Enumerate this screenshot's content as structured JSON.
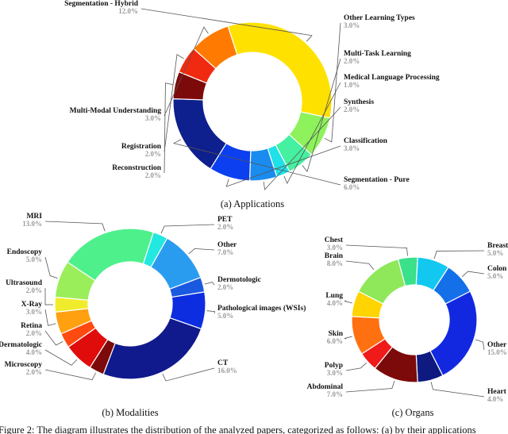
{
  "caption_footer": "Figure 2: The diagram illustrates the distribution of the analyzed papers, categorized as follows: (a) by their applications",
  "chart_data": [
    {
      "type": "pie",
      "title": "(a) Applications",
      "donut": true,
      "categories": [
        "Segmentation - Hybrid",
        "Other Learning Types",
        "Multi-Task Learning",
        "Medical Language Processing",
        "Synthesis",
        "Classification",
        "Segmentation - Pure",
        "Reconstruction",
        "Registration",
        "Multi-Modal Understanding"
      ],
      "values": [
        12.0,
        3.0,
        2.0,
        1.0,
        2.0,
        3.0,
        6.0,
        2.0,
        2.0,
        3.0
      ],
      "labels": [
        "12.0%",
        "3.0%",
        "2.0%",
        "1.0%",
        "2.0%",
        "3.0%",
        "6.0%",
        "2.0%",
        "2.0%",
        "3.0%"
      ],
      "colors": [
        "#ffe100",
        "#8df25c",
        "#45f0a0",
        "#20e0e8",
        "#1a8cf0",
        "#0c3ff0",
        "#0e1f8e",
        "#7d0a0a",
        "#f02a10",
        "#ff7a00"
      ]
    },
    {
      "type": "pie",
      "title": "(b) Modalities",
      "donut": true,
      "categories": [
        "PET",
        "Other",
        "Dermotologic",
        "Pathological images (WSIs)",
        "CT",
        "Microscopy",
        "Dermatologic",
        "Retina",
        "X-Ray",
        "Ultrasound",
        "Endoscopy",
        "MRI"
      ],
      "values": [
        2.0,
        7.0,
        2.0,
        5.0,
        16.0,
        2.0,
        4.0,
        2.0,
        3.0,
        2.0,
        5.0,
        13.0
      ],
      "labels": [
        "2.0%",
        "7.0%",
        "2.0%",
        "5.0%",
        "16.0%",
        "2.0%",
        "4.0%",
        "2.0%",
        "3.0%",
        "2.0%",
        "5.0%",
        "13.0%"
      ],
      "colors": [
        "#22e8e0",
        "#2a9cf0",
        "#1a5ae0",
        "#0c2ee0",
        "#101a8c",
        "#7d0a0a",
        "#e00c0c",
        "#ff4a10",
        "#ffa010",
        "#f0ec2c",
        "#9aee5a",
        "#4ef08c"
      ]
    },
    {
      "type": "pie",
      "title": "(c) Organs",
      "donut": true,
      "categories": [
        "Breast",
        "Colon",
        "Other",
        "Heart",
        "Abdominal",
        "Polyp",
        "Skin",
        "Lung",
        "Brain",
        "Chest"
      ],
      "values": [
        5.0,
        5.0,
        15.0,
        4.0,
        7.0,
        3.0,
        6.0,
        4.0,
        8.0,
        3.0
      ],
      "labels": [
        "5.0%",
        "5.0%",
        "15.0%",
        "4.0%",
        "7.0%",
        "3.0%",
        "6.0%",
        "4.0%",
        "8.0%",
        "3.0%"
      ],
      "colors": [
        "#12c8f0",
        "#1470e8",
        "#1228e0",
        "#0e1a80",
        "#7d0a0a",
        "#f01a1a",
        "#ff7010",
        "#ffd400",
        "#8ee85a",
        "#3ae08a"
      ]
    }
  ]
}
